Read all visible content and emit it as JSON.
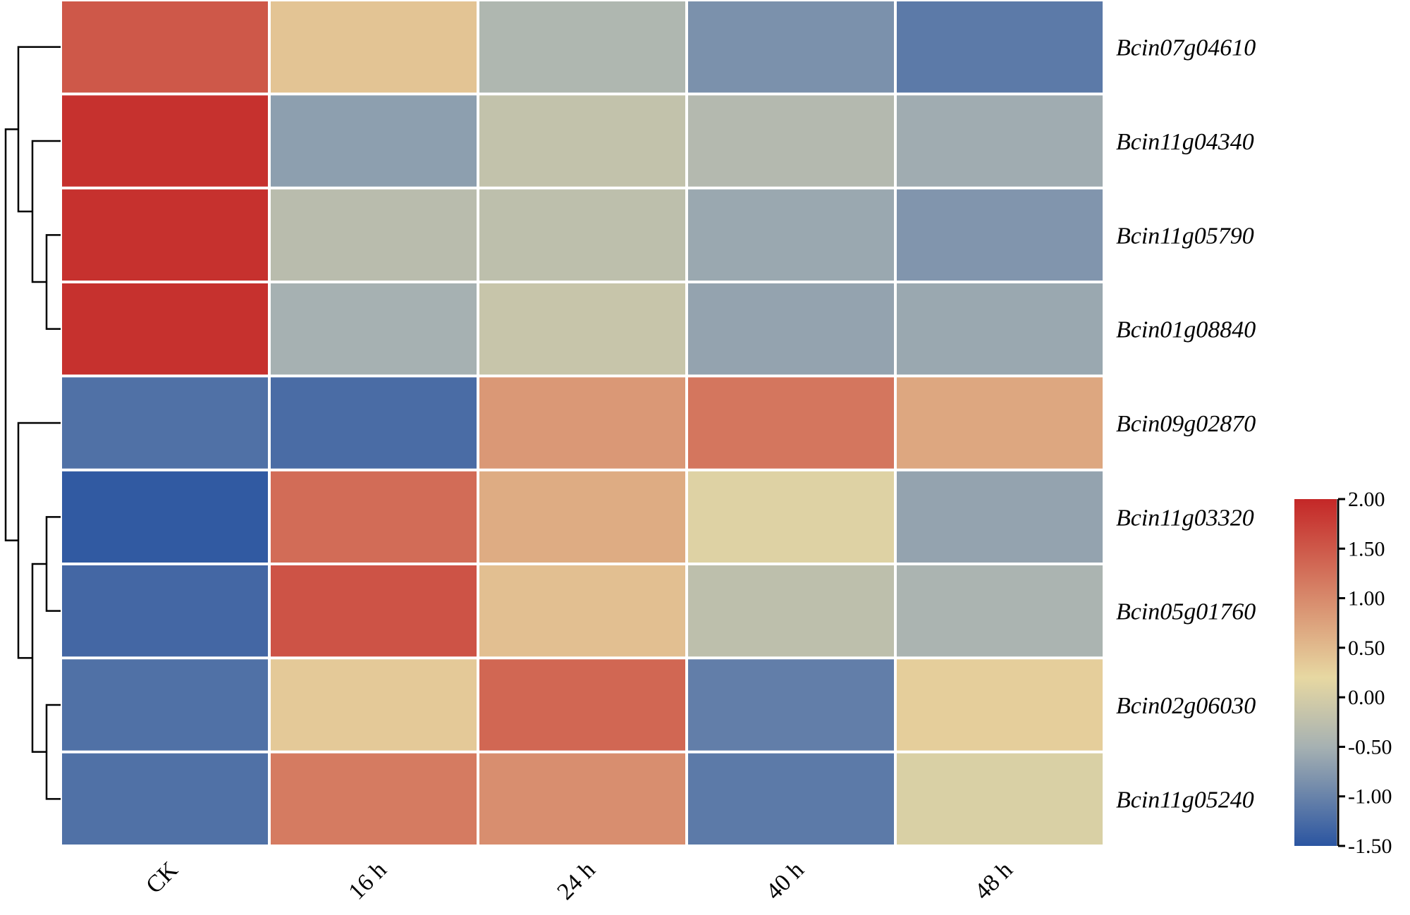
{
  "chart_data": {
    "type": "heatmap",
    "rows": [
      "Bcin07g04610",
      "Bcin11g04340",
      "Bcin11g05790",
      "Bcin01g08840",
      "Bcin09g02870",
      "Bcin11g03320",
      "Bcin05g01760",
      "Bcin02g06030",
      "Bcin11g05240"
    ],
    "columns": [
      "CK",
      "16 h",
      "24 h",
      "40 h",
      "48 h"
    ],
    "values": [
      [
        1.5,
        0.4,
        -0.4,
        -0.85,
        -1.1
      ],
      [
        1.9,
        -0.7,
        -0.2,
        -0.35,
        -0.55
      ],
      [
        1.9,
        -0.3,
        -0.25,
        -0.6,
        -0.8
      ],
      [
        1.9,
        -0.5,
        -0.15,
        -0.65,
        -0.6
      ],
      [
        -1.2,
        -1.25,
        0.85,
        1.2,
        0.7
      ],
      [
        -1.45,
        1.3,
        0.65,
        0.1,
        -0.65
      ],
      [
        -1.3,
        1.55,
        0.45,
        -0.25,
        -0.45
      ],
      [
        -1.2,
        0.35,
        1.35,
        -1.05,
        0.3
      ],
      [
        -1.2,
        1.15,
        0.95,
        -1.1,
        0.05
      ]
    ],
    "colorbar": {
      "min": -1.5,
      "max": 2.0,
      "ticks": [
        "2.00",
        "1.50",
        "1.00",
        "0.50",
        "0.00",
        "-0.50",
        "-1.00",
        "-1.50"
      ],
      "colors": [
        "#2b55a1",
        "#a6b1b2",
        "#e7d8a2",
        "#c42727"
      ],
      "stops": [
        -1.5,
        -0.5,
        0.2,
        2.0
      ]
    },
    "dendrogram": "row clustering on left",
    "legend_position": "right"
  }
}
